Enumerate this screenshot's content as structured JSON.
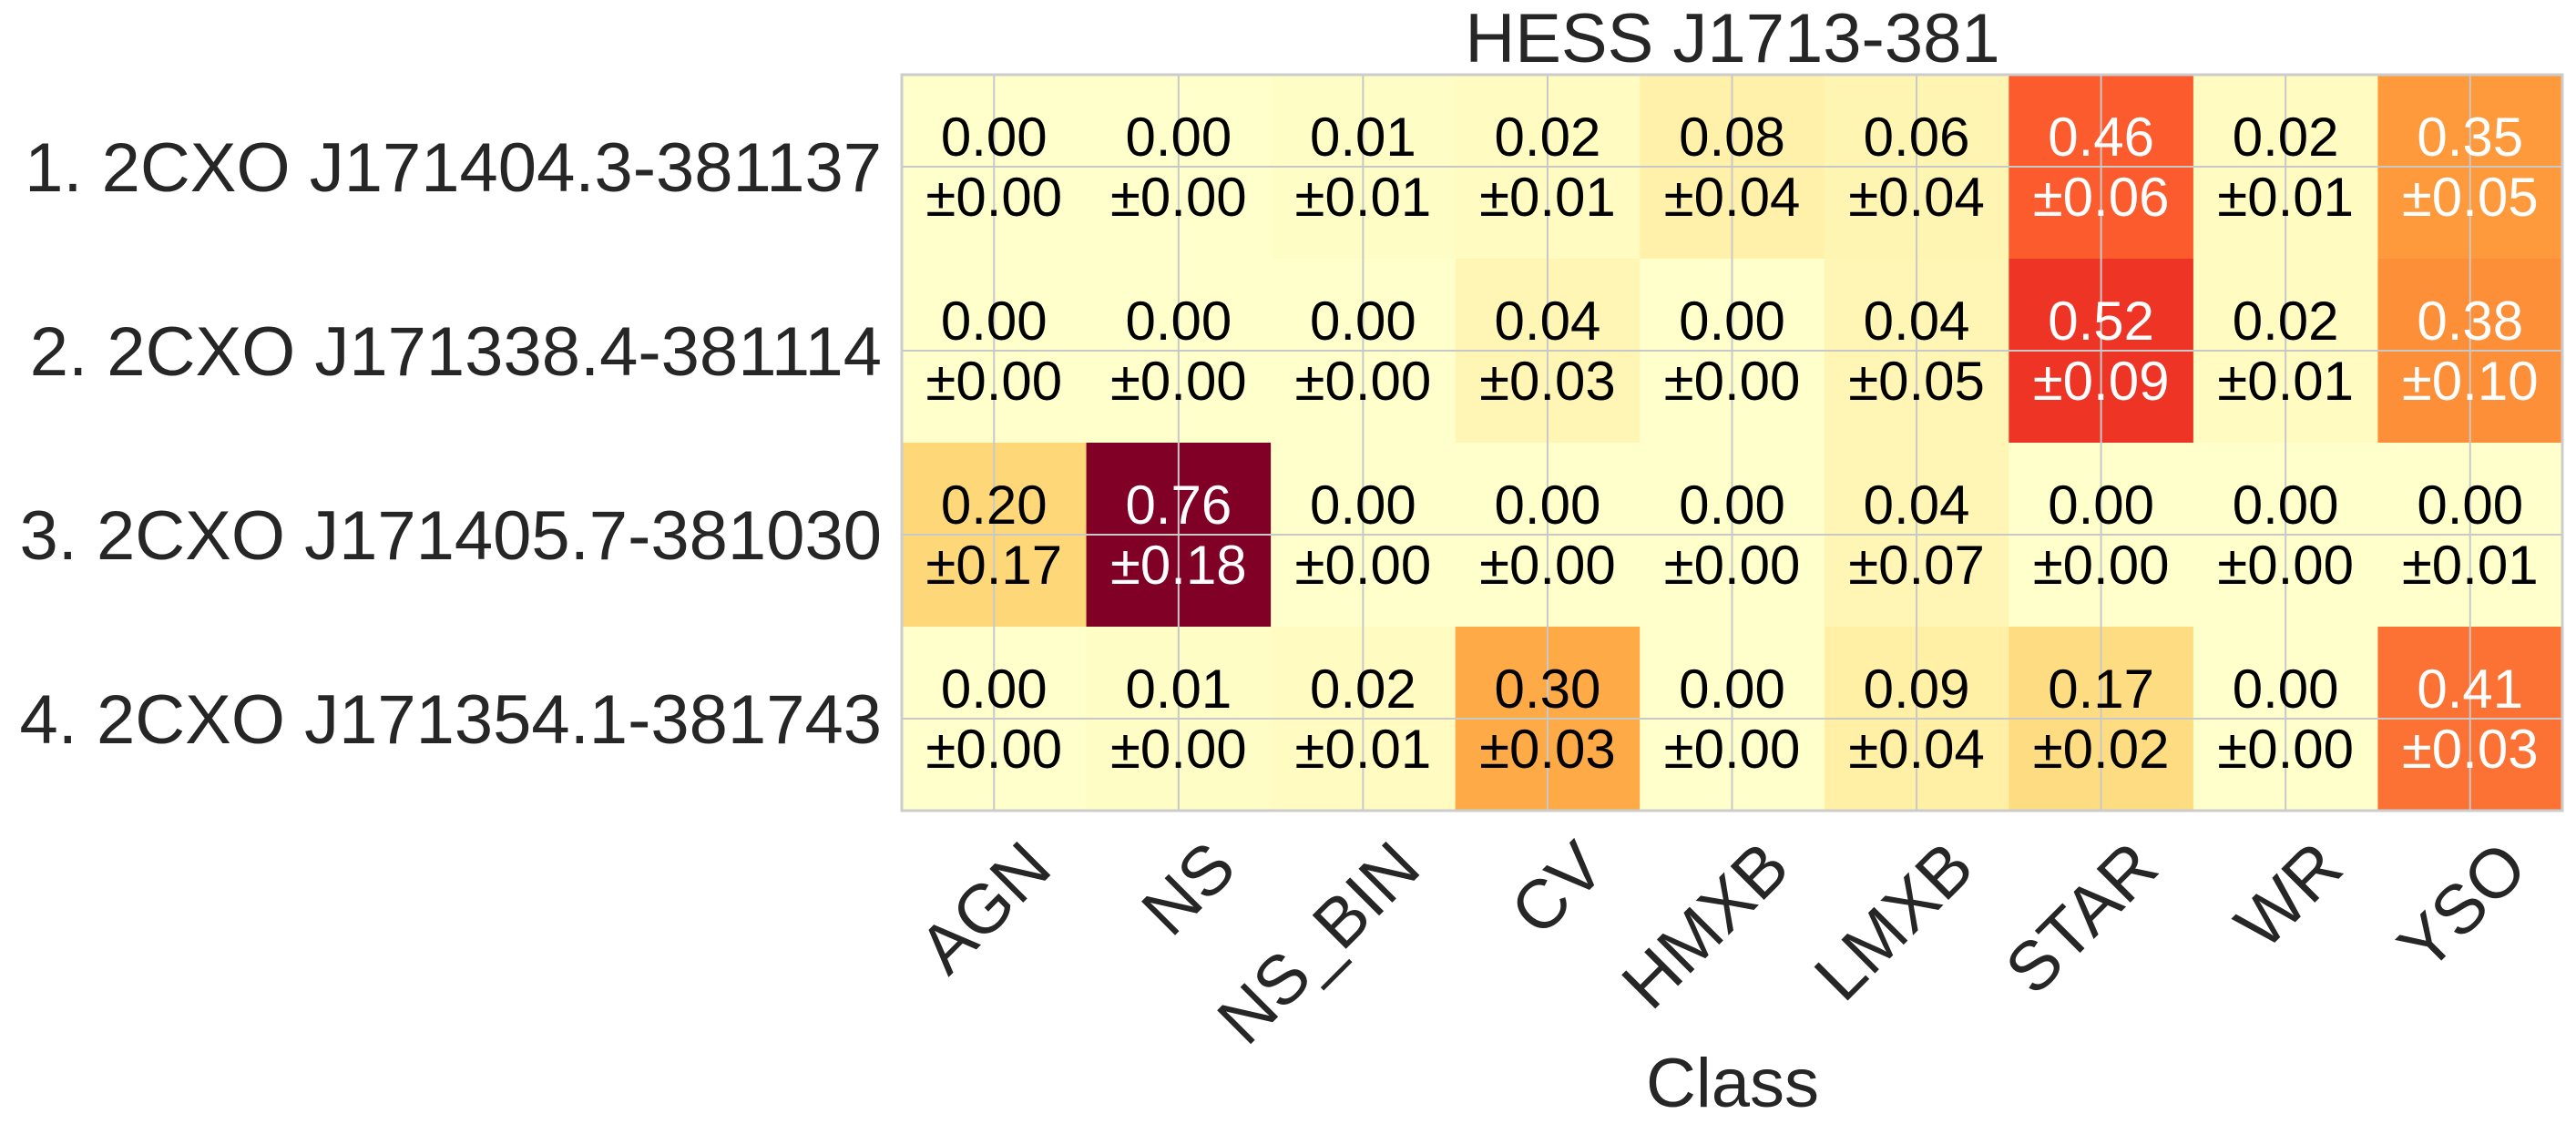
{
  "chart_data": {
    "type": "heatmap",
    "title": "HESS J1713-381",
    "xlabel": "Class",
    "ylabel": "",
    "columns": [
      "AGN",
      "NS",
      "NS_BIN",
      "CV",
      "HMXB",
      "LMXB",
      "STAR",
      "WR",
      "YSO"
    ],
    "rows": [
      "1.  2CXO J171404.3-381137",
      "2.  2CXO J171338.4-381114",
      "3.  2CXO J171405.7-381030",
      "4.  2CXO J171354.1-381743"
    ],
    "values": [
      [
        0.0,
        0.0,
        0.01,
        0.02,
        0.08,
        0.06,
        0.46,
        0.02,
        0.35
      ],
      [
        0.0,
        0.0,
        0.0,
        0.04,
        0.0,
        0.04,
        0.52,
        0.02,
        0.38
      ],
      [
        0.2,
        0.76,
        0.0,
        0.0,
        0.0,
        0.04,
        0.0,
        0.0,
        0.0
      ],
      [
        0.0,
        0.01,
        0.02,
        0.3,
        0.0,
        0.09,
        0.17,
        0.0,
        0.41
      ]
    ],
    "errors": [
      [
        0.0,
        0.0,
        0.01,
        0.01,
        0.04,
        0.04,
        0.06,
        0.01,
        0.05
      ],
      [
        0.0,
        0.0,
        0.0,
        0.03,
        0.0,
        0.05,
        0.09,
        0.01,
        0.1
      ],
      [
        0.17,
        0.18,
        0.0,
        0.0,
        0.0,
        0.07,
        0.0,
        0.0,
        0.01
      ],
      [
        0.0,
        0.0,
        0.01,
        0.03,
        0.0,
        0.04,
        0.02,
        0.0,
        0.03
      ]
    ],
    "value_labels": [
      [
        "0.00",
        "0.00",
        "0.01",
        "0.02",
        "0.08",
        "0.06",
        "0.46",
        "0.02",
        "0.35"
      ],
      [
        "0.00",
        "0.00",
        "0.00",
        "0.04",
        "0.00",
        "0.04",
        "0.52",
        "0.02",
        "0.38"
      ],
      [
        "0.20",
        "0.76",
        "0.00",
        "0.00",
        "0.00",
        "0.04",
        "0.00",
        "0.00",
        "0.00"
      ],
      [
        "0.00",
        "0.01",
        "0.02",
        "0.30",
        "0.00",
        "0.09",
        "0.17",
        "0.00",
        "0.41"
      ]
    ],
    "error_labels": [
      [
        "±0.00",
        "±0.00",
        "±0.01",
        "±0.01",
        "±0.04",
        "±0.04",
        "±0.06",
        "±0.01",
        "±0.05"
      ],
      [
        "±0.00",
        "±0.00",
        "±0.00",
        "±0.03",
        "±0.00",
        "±0.05",
        "±0.09",
        "±0.01",
        "±0.10"
      ],
      [
        "±0.17",
        "±0.18",
        "±0.00",
        "±0.00",
        "±0.00",
        "±0.07",
        "±0.00",
        "±0.00",
        "±0.01"
      ],
      [
        "±0.00",
        "±0.00",
        "±0.01",
        "±0.03",
        "±0.00",
        "±0.04",
        "±0.02",
        "±0.00",
        "±0.03"
      ]
    ],
    "cell_colors": [
      [
        "#FFFFCC",
        "#FFFFCC",
        "#FFFDC6",
        "#FFFBC1",
        "#FFF1A9",
        "#FFF5B3",
        "#FC5B2D",
        "#FFFBC1",
        "#FE9A3C"
      ],
      [
        "#FFFFCC",
        "#FFFFCC",
        "#FFFFCC",
        "#FFF6B6",
        "#FFFFCC",
        "#FFF6B6",
        "#EE3425",
        "#FFFBC1",
        "#FD8F39"
      ],
      [
        "#FED878",
        "#800026",
        "#FFFFCC",
        "#FFFFCC",
        "#FFFFCC",
        "#FFF6B6",
        "#FFFFCC",
        "#FFFFCC",
        "#FFFFCC"
      ],
      [
        "#FFFFCC",
        "#FFFDC6",
        "#FFFBC1",
        "#FEAA47",
        "#FFFFCC",
        "#FFF0A5",
        "#FEDC81",
        "#FFFFCC",
        "#FC7234"
      ]
    ],
    "light_text_threshold": 0.35,
    "colormap": "YlOrRd",
    "color_range": [
      0,
      0.76
    ],
    "grid": true,
    "colors": {
      "text_dark": "#000000",
      "text_light": "#ffffff",
      "grid": "#c8c8c8",
      "frame": "#cccccc",
      "label": "#262626"
    }
  }
}
